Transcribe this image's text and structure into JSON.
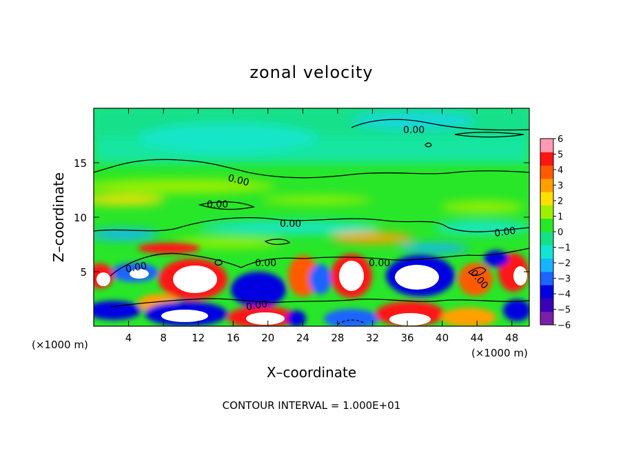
{
  "chart_data": {
    "type": "heatmap",
    "title": "zonal velocity",
    "xlabel": "X–coordinate",
    "ylabel": "Z–coordinate",
    "x_unit": "(×1000 m)",
    "y_unit": "(×1000 m)",
    "xlim": [
      0,
      50
    ],
    "ylim": [
      0,
      20
    ],
    "x_ticks": [
      4,
      8,
      12,
      16,
      20,
      24,
      28,
      32,
      36,
      40,
      44,
      48
    ],
    "y_ticks": [
      5,
      10,
      15
    ],
    "x_tick_labels": [
      "4",
      "8",
      "12",
      "16",
      "20",
      "24",
      "28",
      "32",
      "36",
      "40",
      "44",
      "48"
    ],
    "y_tick_labels": [
      "5",
      "10",
      "15"
    ],
    "colorbar": {
      "levels": [
        -6,
        -5,
        -4,
        -3,
        -2,
        -1,
        0,
        1,
        2,
        3,
        4,
        5,
        6
      ],
      "labels": [
        "6",
        "5",
        "4",
        "3",
        "2",
        "1",
        "0",
        "−1",
        "−2",
        "−3",
        "−4",
        "−5",
        "−6"
      ],
      "colors": [
        "#7a1fa8",
        "#3a00b8",
        "#0000e0",
        "#1e64ff",
        "#18b4ff",
        "#12e6d2",
        "#14e08a",
        "#28e628",
        "#9cf000",
        "#ffe000",
        "#ffa000",
        "#ff5a00",
        "#ff1414",
        "#ff9ab4"
      ]
    },
    "contour_level": 0,
    "contour_labels": [
      "0.00",
      "0.00",
      "0.00",
      "0.00",
      "0.00",
      "0.00",
      "0.00",
      "0.00",
      "0.00",
      "0.00"
    ],
    "footer": "CONTOUR INTERVAL = 1.000E+01"
  }
}
